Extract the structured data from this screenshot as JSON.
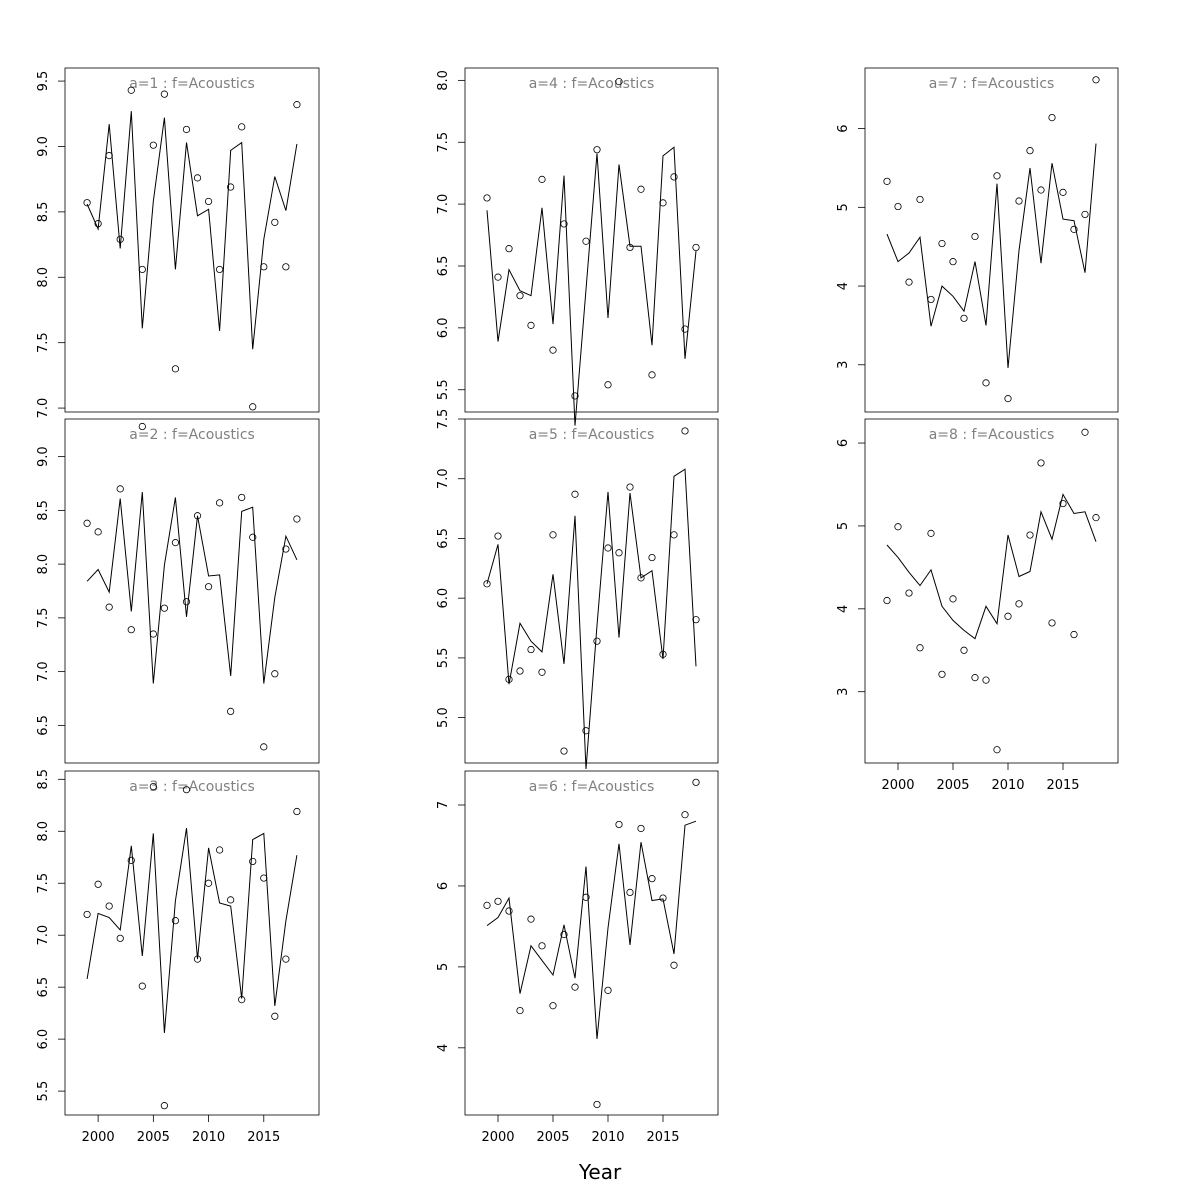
{
  "figure": {
    "xlabel": "Year",
    "line_color": "#000000",
    "point_color": "#000000",
    "title_color": "#808080"
  },
  "chart_data": [
    {
      "type": "line",
      "title": "a=1  :  f=Acoustics",
      "xlim": [
        1997,
        2020
      ],
      "ylim": [
        6.97,
        9.6
      ],
      "yticks": [
        "7.0",
        "7.5",
        "8.0",
        "8.5",
        "9.0",
        "9.5"
      ],
      "xticks": [],
      "grid": false,
      "x": [
        1999,
        2000,
        2001,
        2002,
        2003,
        2004,
        2005,
        2006,
        2007,
        2008,
        2009,
        2010,
        2011,
        2012,
        2013,
        2014,
        2015,
        2016,
        2017,
        2018
      ],
      "series": [
        {
          "role": "fitted-line",
          "values": [
            8.56,
            8.37,
            9.17,
            8.22,
            9.27,
            7.61,
            8.58,
            9.22,
            8.06,
            9.03,
            8.47,
            8.52,
            7.59,
            8.97,
            9.03,
            7.45,
            8.29,
            8.77,
            8.51,
            9.02
          ]
        },
        {
          "role": "observed-points",
          "values": [
            8.57,
            8.41,
            8.93,
            8.29,
            9.43,
            8.06,
            9.01,
            9.4,
            7.3,
            9.13,
            8.76,
            8.58,
            8.06,
            8.69,
            9.15,
            7.01,
            8.08,
            8.42,
            8.08,
            9.32
          ]
        }
      ]
    },
    {
      "type": "line",
      "title": "a=2  :  f=Acoustics",
      "xlim": [
        1997,
        2020
      ],
      "ylim": [
        6.15,
        9.35
      ],
      "yticks": [
        "6.5",
        "7.0",
        "7.5",
        "8.0",
        "8.5",
        "9.0"
      ],
      "xticks": [],
      "grid": false,
      "x": [
        1999,
        2000,
        2001,
        2002,
        2003,
        2004,
        2005,
        2006,
        2007,
        2008,
        2009,
        2010,
        2011,
        2012,
        2013,
        2014,
        2015,
        2016,
        2017,
        2018
      ],
      "series": [
        {
          "role": "fitted-line",
          "values": [
            7.84,
            7.95,
            7.74,
            8.61,
            7.56,
            8.67,
            6.89,
            7.99,
            8.62,
            7.51,
            8.45,
            7.89,
            7.9,
            6.96,
            8.49,
            8.53,
            6.89,
            7.69,
            8.26,
            8.04
          ]
        },
        {
          "role": "observed-points",
          "values": [
            8.38,
            8.3,
            7.6,
            8.7,
            7.39,
            9.28,
            7.35,
            7.59,
            8.2,
            7.65,
            8.45,
            7.79,
            8.57,
            6.63,
            8.62,
            8.25,
            6.3,
            6.98,
            8.14,
            8.42
          ]
        }
      ]
    },
    {
      "type": "line",
      "title": "a=3  :  f=Acoustics",
      "xlim": [
        1997,
        2020
      ],
      "ylim": [
        5.27,
        8.58
      ],
      "yticks": [
        "5.5",
        "6.0",
        "6.5",
        "7.0",
        "7.5",
        "8.0",
        "8.5"
      ],
      "xticks": [
        "2000",
        "2005",
        "2010",
        "2015"
      ],
      "grid": false,
      "x": [
        1999,
        2000,
        2001,
        2002,
        2003,
        2004,
        2005,
        2006,
        2007,
        2008,
        2009,
        2010,
        2011,
        2012,
        2013,
        2014,
        2015,
        2016,
        2017,
        2018
      ],
      "series": [
        {
          "role": "fitted-line",
          "values": [
            6.58,
            7.21,
            7.17,
            7.05,
            7.86,
            6.8,
            7.98,
            6.06,
            7.33,
            8.03,
            6.77,
            7.84,
            7.31,
            7.28,
            6.39,
            7.92,
            7.98,
            6.32,
            7.14,
            7.77
          ]
        },
        {
          "role": "observed-points",
          "values": [
            7.2,
            7.49,
            7.28,
            6.97,
            7.72,
            6.51,
            8.43,
            5.36,
            7.14,
            8.4,
            6.77,
            7.5,
            7.82,
            7.34,
            6.38,
            7.71,
            7.55,
            6.22,
            6.77,
            8.19
          ]
        }
      ]
    },
    {
      "type": "line",
      "title": "a=4  :  f=Acoustics",
      "xlim": [
        1997,
        2020
      ],
      "ylim": [
        5.32,
        8.1
      ],
      "yticks": [
        "5.5",
        "6.0",
        "6.5",
        "7.0",
        "7.5",
        "8.0"
      ],
      "xticks": [],
      "grid": false,
      "x": [
        1999,
        2000,
        2001,
        2002,
        2003,
        2004,
        2005,
        2006,
        2007,
        2008,
        2009,
        2010,
        2011,
        2012,
        2013,
        2014,
        2015,
        2016,
        2017,
        2018
      ],
      "series": [
        {
          "role": "fitted-line",
          "values": [
            6.95,
            5.89,
            6.47,
            6.3,
            6.26,
            6.97,
            6.03,
            7.23,
            5.21,
            6.31,
            7.41,
            6.08,
            7.32,
            6.66,
            6.66,
            5.86,
            7.39,
            7.46,
            5.75,
            6.62
          ]
        },
        {
          "role": "observed-points",
          "values": [
            7.05,
            6.41,
            6.64,
            6.26,
            6.02,
            7.2,
            5.82,
            6.84,
            5.45,
            6.7,
            7.44,
            5.54,
            7.99,
            6.65,
            7.12,
            5.62,
            7.01,
            7.22,
            5.99,
            6.65
          ]
        }
      ]
    },
    {
      "type": "line",
      "title": "a=5  :  f=Acoustics",
      "xlim": [
        1997,
        2020
      ],
      "ylim": [
        4.62,
        7.5
      ],
      "yticks": [
        "5.0",
        "5.5",
        "6.0",
        "6.5",
        "7.0",
        "7.5"
      ],
      "xticks": [],
      "grid": false,
      "x": [
        1999,
        2000,
        2001,
        2002,
        2003,
        2004,
        2005,
        2006,
        2007,
        2008,
        2009,
        2010,
        2011,
        2012,
        2013,
        2014,
        2015,
        2016,
        2017,
        2018
      ],
      "series": [
        {
          "role": "fitted-line",
          "values": [
            6.12,
            6.45,
            5.28,
            5.79,
            5.64,
            5.55,
            6.2,
            5.45,
            6.69,
            4.57,
            5.77,
            6.89,
            5.67,
            6.88,
            6.17,
            6.23,
            5.49,
            7.02,
            7.08,
            5.43
          ]
        },
        {
          "role": "observed-points",
          "values": [
            6.12,
            6.52,
            5.32,
            5.39,
            5.57,
            5.38,
            6.53,
            4.72,
            6.87,
            4.89,
            5.64,
            6.42,
            6.38,
            6.93,
            6.17,
            6.34,
            5.53,
            6.53,
            7.4,
            5.82
          ]
        }
      ]
    },
    {
      "type": "line",
      "title": "a=6  :  f=Acoustics",
      "xlim": [
        1997,
        2020
      ],
      "ylim": [
        3.17,
        7.42
      ],
      "yticks": [
        "4",
        "5",
        "6",
        "7"
      ],
      "xticks": [
        "2000",
        "2005",
        "2010",
        "2015"
      ],
      "grid": false,
      "x": [
        1999,
        2000,
        2001,
        2002,
        2003,
        2004,
        2005,
        2006,
        2007,
        2008,
        2009,
        2010,
        2011,
        2012,
        2013,
        2014,
        2015,
        2016,
        2017,
        2018
      ],
      "series": [
        {
          "role": "fitted-line",
          "values": [
            5.51,
            5.61,
            5.85,
            4.67,
            5.26,
            5.08,
            4.9,
            5.52,
            4.86,
            6.24,
            4.11,
            5.48,
            6.52,
            5.27,
            6.54,
            5.82,
            5.84,
            5.16,
            6.75,
            6.8
          ]
        },
        {
          "role": "observed-points",
          "values": [
            5.76,
            5.81,
            5.69,
            4.46,
            5.59,
            5.26,
            4.52,
            5.4,
            4.75,
            5.86,
            3.3,
            4.71,
            6.76,
            5.92,
            6.71,
            6.09,
            5.85,
            5.02,
            6.88,
            7.28
          ]
        }
      ]
    },
    {
      "type": "line",
      "title": "a=7  :  f=Acoustics",
      "xlim": [
        1997,
        2020
      ],
      "ylim": [
        2.4,
        6.77
      ],
      "yticks": [
        "3",
        "4",
        "5",
        "6"
      ],
      "xticks": [],
      "grid": false,
      "x": [
        1999,
        2000,
        2001,
        2002,
        2003,
        2004,
        2005,
        2006,
        2007,
        2008,
        2009,
        2010,
        2011,
        2012,
        2013,
        2014,
        2015,
        2016,
        2017,
        2018
      ],
      "series": [
        {
          "role": "fitted-line",
          "values": [
            4.66,
            4.31,
            4.42,
            4.62,
            3.49,
            4.0,
            3.87,
            3.68,
            4.31,
            3.5,
            5.3,
            2.96,
            4.45,
            5.5,
            4.29,
            5.56,
            4.85,
            4.83,
            4.17,
            5.81
          ]
        },
        {
          "role": "observed-points",
          "values": [
            5.33,
            5.01,
            4.05,
            5.1,
            3.83,
            4.54,
            4.31,
            3.59,
            4.63,
            2.77,
            5.4,
            2.57,
            5.08,
            5.72,
            5.22,
            6.14,
            5.19,
            4.72,
            4.91,
            6.62
          ]
        }
      ]
    },
    {
      "type": "line",
      "title": "a=8  :  f=Acoustics",
      "xlim": [
        1997,
        2020
      ],
      "ylim": [
        2.14,
        6.29
      ],
      "yticks": [
        "3",
        "4",
        "5",
        "6"
      ],
      "xticks": [
        "2000",
        "2005",
        "2010",
        "2015"
      ],
      "grid": false,
      "x": [
        1999,
        2000,
        2001,
        2002,
        2003,
        2004,
        2005,
        2006,
        2007,
        2008,
        2009,
        2010,
        2011,
        2012,
        2013,
        2014,
        2015,
        2016,
        2017,
        2018
      ],
      "series": [
        {
          "role": "fitted-line",
          "values": [
            4.77,
            4.62,
            4.44,
            4.28,
            4.47,
            4.03,
            3.86,
            3.74,
            3.64,
            4.03,
            3.82,
            4.89,
            4.39,
            4.45,
            5.17,
            4.84,
            5.38,
            5.15,
            5.17,
            4.81
          ]
        },
        {
          "role": "observed-points",
          "values": [
            4.1,
            4.99,
            4.19,
            3.53,
            4.91,
            3.21,
            4.12,
            3.5,
            3.17,
            3.14,
            2.3,
            3.91,
            4.06,
            4.89,
            5.76,
            3.83,
            5.27,
            3.69,
            6.13,
            5.1
          ]
        }
      ]
    }
  ]
}
